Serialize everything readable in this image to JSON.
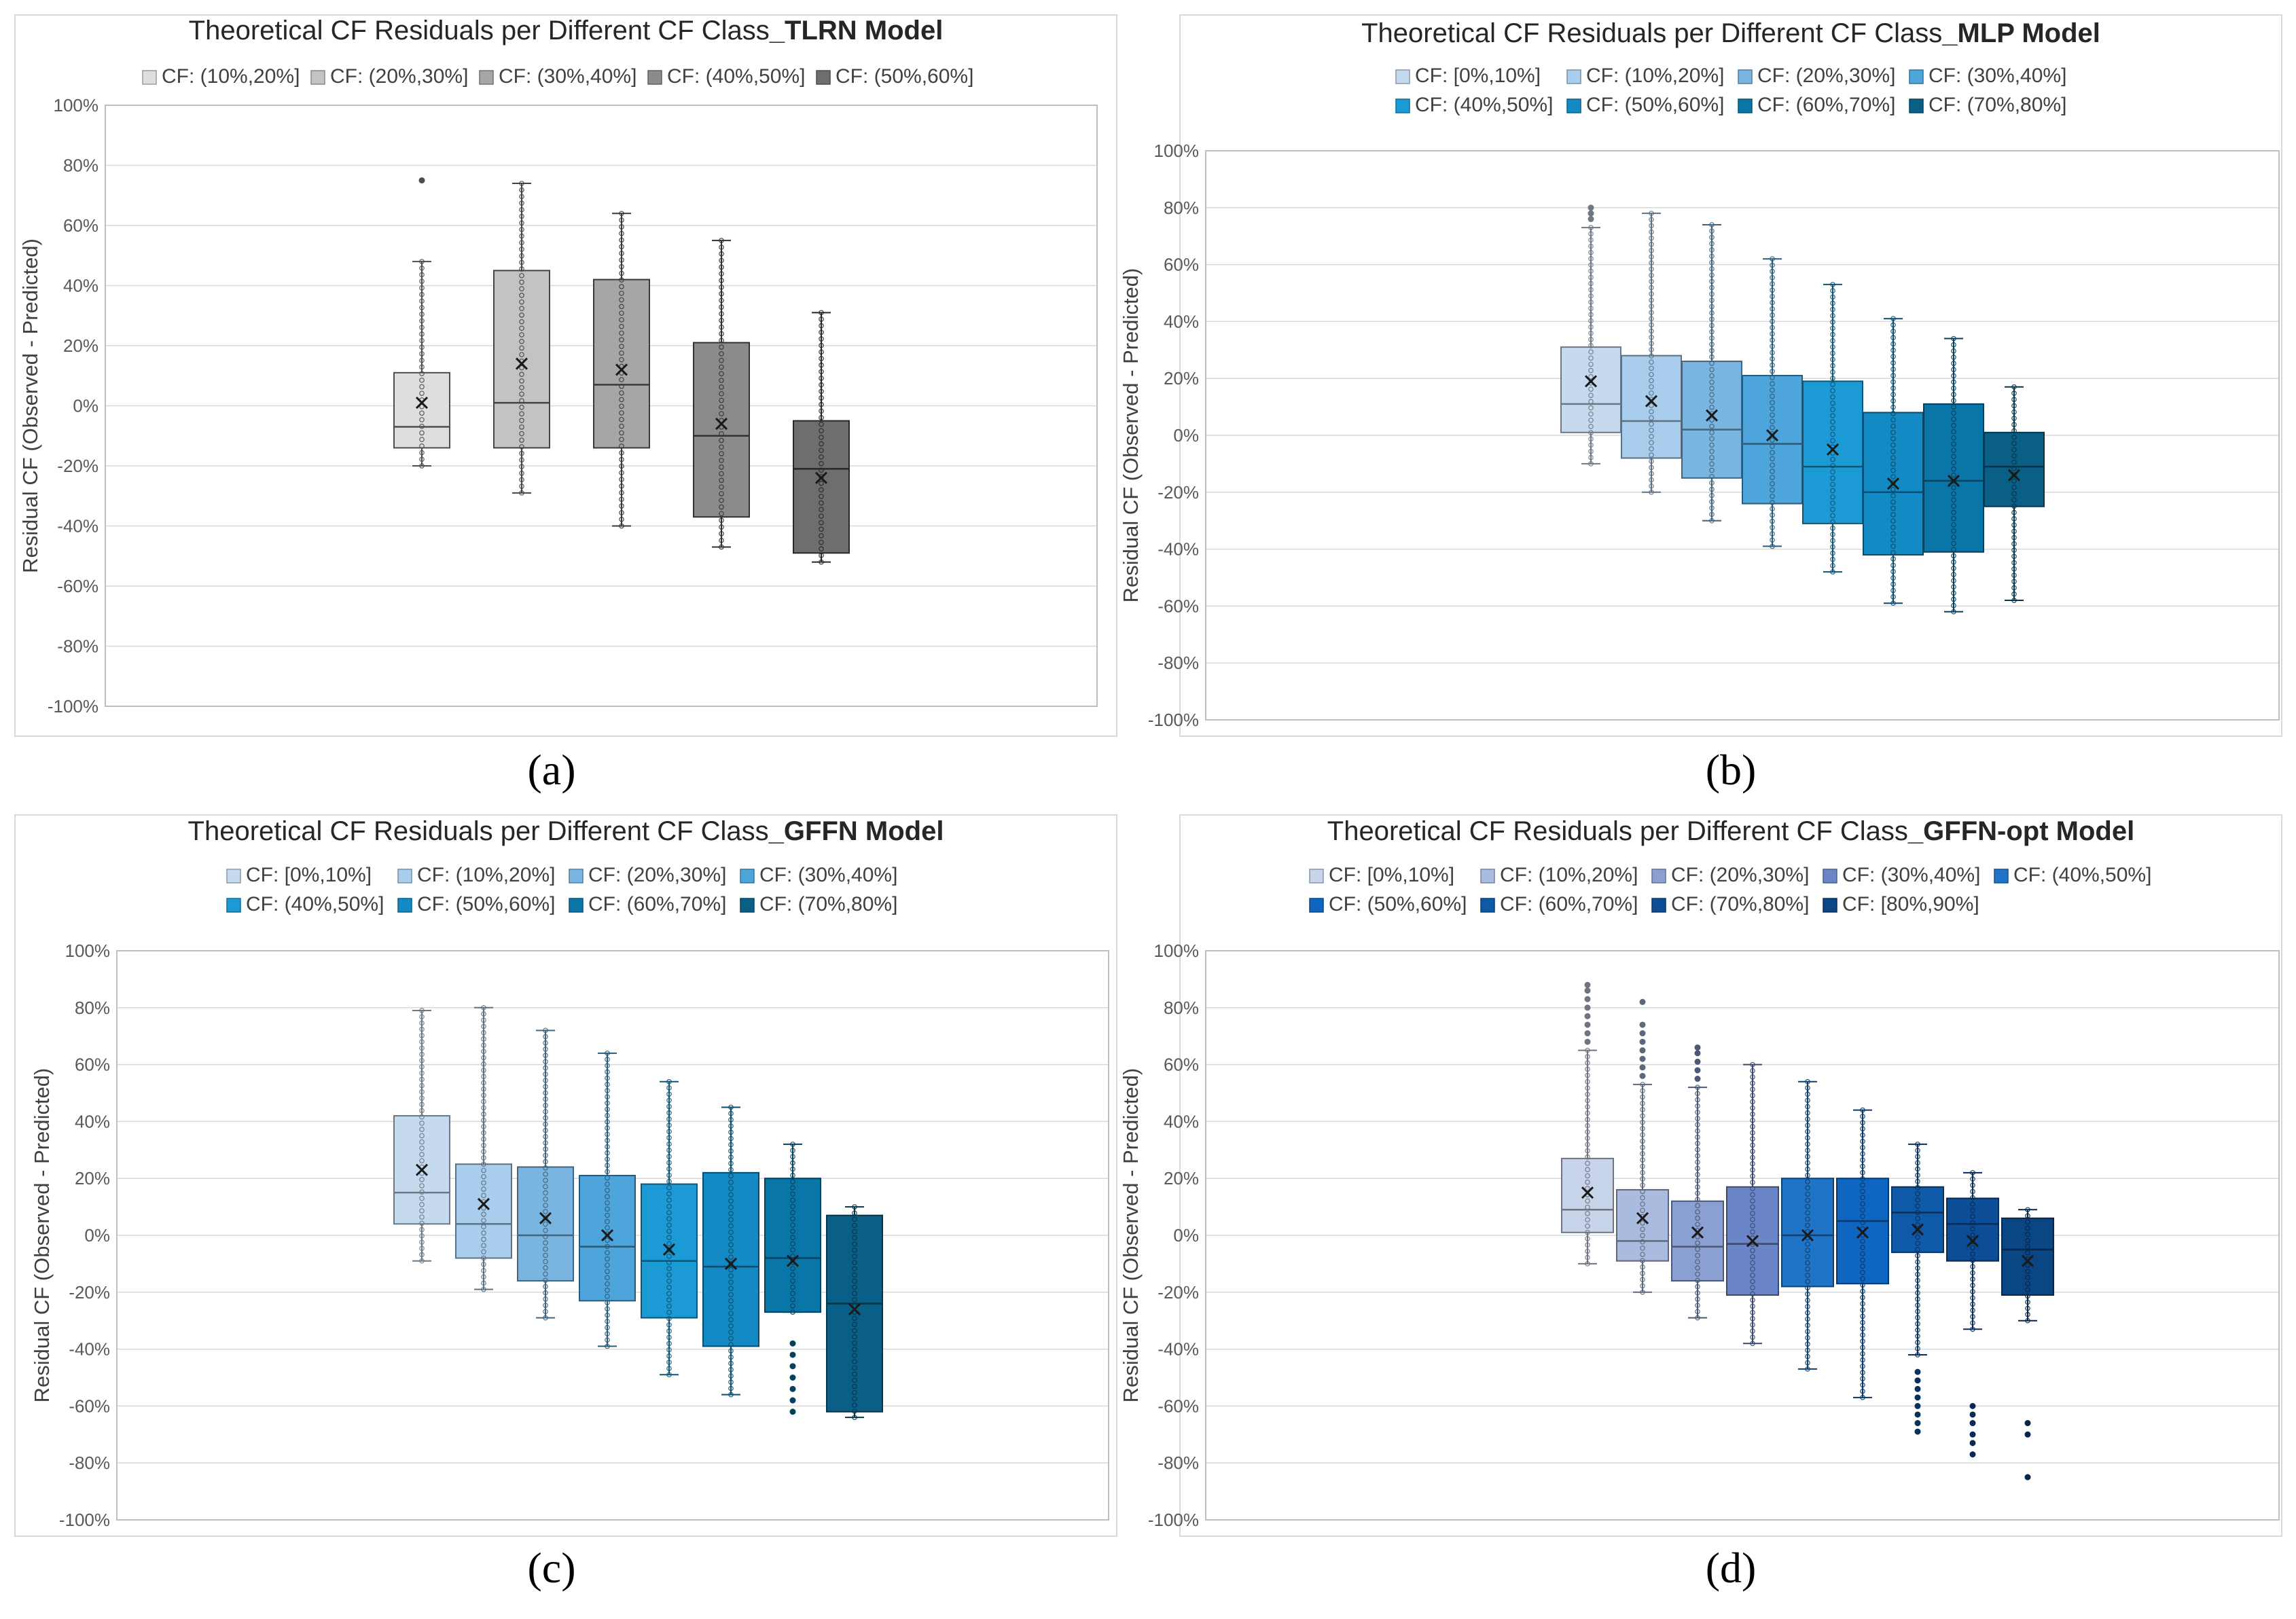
{
  "colors": {
    "a": [
      "#dedede",
      "#c3c3c3",
      "#a6a6a6",
      "#8b8b8b",
      "#6e6e6e"
    ],
    "b": [
      "#c6daef",
      "#a9cdec",
      "#7ab5e2",
      "#4da5dc",
      "#1c9ad6",
      "#138ac3",
      "#0a76a8",
      "#0a5f86"
    ],
    "c": [
      "#c6daef",
      "#a9cdec",
      "#7ab5e2",
      "#4da5dc",
      "#1c9ad6",
      "#138ac3",
      "#0a76a8",
      "#0a5f86"
    ],
    "d": [
      "#c8d4ea",
      "#aabbe0",
      "#8ba0d2",
      "#6a86c8",
      "#1f74c8",
      "#0f66c0",
      "#0e59a8",
      "#0c4e96",
      "#0a4584"
    ],
    "bg": "#ffffff",
    "grid": "#d9d9d9",
    "axis_text": "#595959"
  },
  "chart_data": [
    {
      "panel_label": "(a)",
      "type": "box",
      "title_prefix": "Theoretical CF Residuals per Different CF Class",
      "title_model": "_TLRN Model",
      "ylabel": "Residual CF (Observed - Predicted)",
      "ylim": [
        -100,
        100
      ],
      "yticks": [
        "100%",
        "80%",
        "60%",
        "40%",
        "20%",
        "0%",
        "-20%",
        "-40%",
        "-60%",
        "-80%",
        "-100%"
      ],
      "legend": [
        "CF: (10%,20%]",
        "CF: (20%,30%]",
        "CF: (30%,40%]",
        "CF: (40%,50%]",
        "CF: (50%,60%]"
      ],
      "boxes": [
        {
          "min": -20,
          "q1": -14,
          "median": -7,
          "mean": 1,
          "q3": 11,
          "max": 48,
          "outliers": [
            75
          ]
        },
        {
          "min": -29,
          "q1": -14,
          "median": 1,
          "mean": 14,
          "q3": 45,
          "max": 74,
          "outliers": []
        },
        {
          "min": -40,
          "q1": -14,
          "median": 7,
          "mean": 12,
          "q3": 42,
          "max": 64,
          "outliers": []
        },
        {
          "min": -47,
          "q1": -37,
          "median": -10,
          "mean": -6,
          "q3": 21,
          "max": 55,
          "outliers": []
        },
        {
          "min": -52,
          "q1": -49,
          "median": -21,
          "mean": -24,
          "q3": -5,
          "max": 31,
          "outliers": []
        }
      ]
    },
    {
      "panel_label": "(b)",
      "type": "box",
      "title_prefix": "Theoretical CF Residuals per Different CF Class",
      "title_model": "_MLP Model",
      "ylabel": "Residual CF (Observed - Predicted)",
      "ylim": [
        -100,
        100
      ],
      "yticks": [
        "100%",
        "80%",
        "60%",
        "40%",
        "20%",
        "0%",
        "-20%",
        "-40%",
        "-60%",
        "-80%",
        "-100%"
      ],
      "legend": [
        "CF: [0%,10%]",
        "CF: (10%,20%]",
        "CF: (20%,30%]",
        "CF: (30%,40%]",
        "CF: (40%,50%]",
        "CF: (50%,60%]",
        "CF: (60%,70%]",
        "CF: (70%,80%]"
      ],
      "boxes": [
        {
          "min": -10,
          "q1": 1,
          "median": 11,
          "mean": 19,
          "q3": 31,
          "max": 73,
          "outliers": [
            76,
            78,
            80
          ]
        },
        {
          "min": -20,
          "q1": -8,
          "median": 5,
          "mean": 12,
          "q3": 28,
          "max": 78,
          "outliers": []
        },
        {
          "min": -30,
          "q1": -15,
          "median": 2,
          "mean": 7,
          "q3": 26,
          "max": 74,
          "outliers": []
        },
        {
          "min": -39,
          "q1": -24,
          "median": -3,
          "mean": 0,
          "q3": 21,
          "max": 62,
          "outliers": []
        },
        {
          "min": -48,
          "q1": -31,
          "median": -11,
          "mean": -5,
          "q3": 19,
          "max": 53,
          "outliers": []
        },
        {
          "min": -59,
          "q1": -42,
          "median": -20,
          "mean": -17,
          "q3": 8,
          "max": 41,
          "outliers": []
        },
        {
          "min": -62,
          "q1": -41,
          "median": -16,
          "mean": -16,
          "q3": 11,
          "max": 34,
          "outliers": []
        },
        {
          "min": -58,
          "q1": -25,
          "median": -11,
          "mean": -14,
          "q3": 1,
          "max": 17,
          "outliers": []
        }
      ]
    },
    {
      "panel_label": "(c)",
      "type": "box",
      "title_prefix": "Theoretical CF Residuals per Different CF Class",
      "title_model": "_GFFN Model",
      "ylabel": "Residual CF (Observed - Predicted)",
      "ylim": [
        -100,
        100
      ],
      "yticks": [
        "100%",
        "80%",
        "60%",
        "40%",
        "20%",
        "0%",
        "-20%",
        "-40%",
        "-60%",
        "-80%",
        "-100%"
      ],
      "legend": [
        "CF: [0%,10%]",
        "CF: (10%,20%]",
        "CF: (20%,30%]",
        "CF: (30%,40%]",
        "CF: (40%,50%]",
        "CF: (50%,60%]",
        "CF: (60%,70%]",
        "CF: (70%,80%]"
      ],
      "boxes": [
        {
          "min": -9,
          "q1": 4,
          "median": 15,
          "mean": 23,
          "q3": 42,
          "max": 79,
          "outliers": []
        },
        {
          "min": -19,
          "q1": -8,
          "median": 4,
          "mean": 11,
          "q3": 25,
          "max": 80,
          "outliers": []
        },
        {
          "min": -29,
          "q1": -16,
          "median": 0,
          "mean": 6,
          "q3": 24,
          "max": 72,
          "outliers": []
        },
        {
          "min": -39,
          "q1": -23,
          "median": -4,
          "mean": 0,
          "q3": 21,
          "max": 64,
          "outliers": []
        },
        {
          "min": -49,
          "q1": -29,
          "median": -9,
          "mean": -5,
          "q3": 18,
          "max": 54,
          "outliers": []
        },
        {
          "min": -56,
          "q1": -39,
          "median": -11,
          "mean": -10,
          "q3": 22,
          "max": 45,
          "outliers": []
        },
        {
          "min": -27,
          "q1": -27,
          "median": -8,
          "mean": -9,
          "q3": 20,
          "max": 32,
          "outliers": [
            -38,
            -42,
            -46,
            -50,
            -54,
            -58,
            -62
          ]
        },
        {
          "min": -64,
          "q1": -62,
          "median": -24,
          "mean": -26,
          "q3": 7,
          "max": 10,
          "outliers": []
        }
      ]
    },
    {
      "panel_label": "(d)",
      "type": "box",
      "title_prefix": "Theoretical CF Residuals per Different CF Class",
      "title_model": "_GFFN-opt Model",
      "ylabel": "Residual CF (Observed - Predicted)",
      "ylim": [
        -100,
        100
      ],
      "yticks": [
        "100%",
        "80%",
        "60%",
        "40%",
        "20%",
        "0%",
        "-20%",
        "-40%",
        "-60%",
        "-80%",
        "-100%"
      ],
      "legend": [
        "CF: [0%,10%]",
        "CF: (10%,20%]",
        "CF: (20%,30%]",
        "CF: (30%,40%]",
        "CF: (40%,50%]",
        "CF: (50%,60%]",
        "CF: (60%,70%]",
        "CF: (70%,80%]",
        "CF: [80%,90%]"
      ],
      "boxes": [
        {
          "min": -10,
          "q1": 1,
          "median": 9,
          "mean": 15,
          "q3": 27,
          "max": 65,
          "outliers": [
            68,
            71,
            74,
            77,
            80,
            83,
            86,
            88
          ]
        },
        {
          "min": -20,
          "q1": -9,
          "median": -2,
          "mean": 6,
          "q3": 16,
          "max": 53,
          "outliers": [
            56,
            59,
            62,
            65,
            68,
            71,
            74,
            82
          ]
        },
        {
          "min": -29,
          "q1": -16,
          "median": -4,
          "mean": 1,
          "q3": 12,
          "max": 52,
          "outliers": [
            55,
            58,
            61,
            64,
            66
          ]
        },
        {
          "min": -38,
          "q1": -21,
          "median": -3,
          "mean": -2,
          "q3": 17,
          "max": 60,
          "outliers": []
        },
        {
          "min": -47,
          "q1": -18,
          "median": 0,
          "mean": 0,
          "q3": 20,
          "max": 54,
          "outliers": []
        },
        {
          "min": -57,
          "q1": -17,
          "median": 5,
          "mean": 1,
          "q3": 20,
          "max": 44,
          "outliers": []
        },
        {
          "min": -42,
          "q1": -6,
          "median": 8,
          "mean": 2,
          "q3": 17,
          "max": 32,
          "outliers": [
            -48,
            -51,
            -54,
            -57,
            -60,
            -63,
            -66,
            -69
          ]
        },
        {
          "min": -33,
          "q1": -9,
          "median": 4,
          "mean": -2,
          "q3": 13,
          "max": 22,
          "outliers": [
            -60,
            -63,
            -66,
            -70,
            -73,
            -77
          ]
        },
        {
          "min": -30,
          "q1": -21,
          "median": -5,
          "mean": -9,
          "q3": 6,
          "max": 9,
          "outliers": [
            -66,
            -70,
            -85
          ]
        }
      ]
    }
  ]
}
